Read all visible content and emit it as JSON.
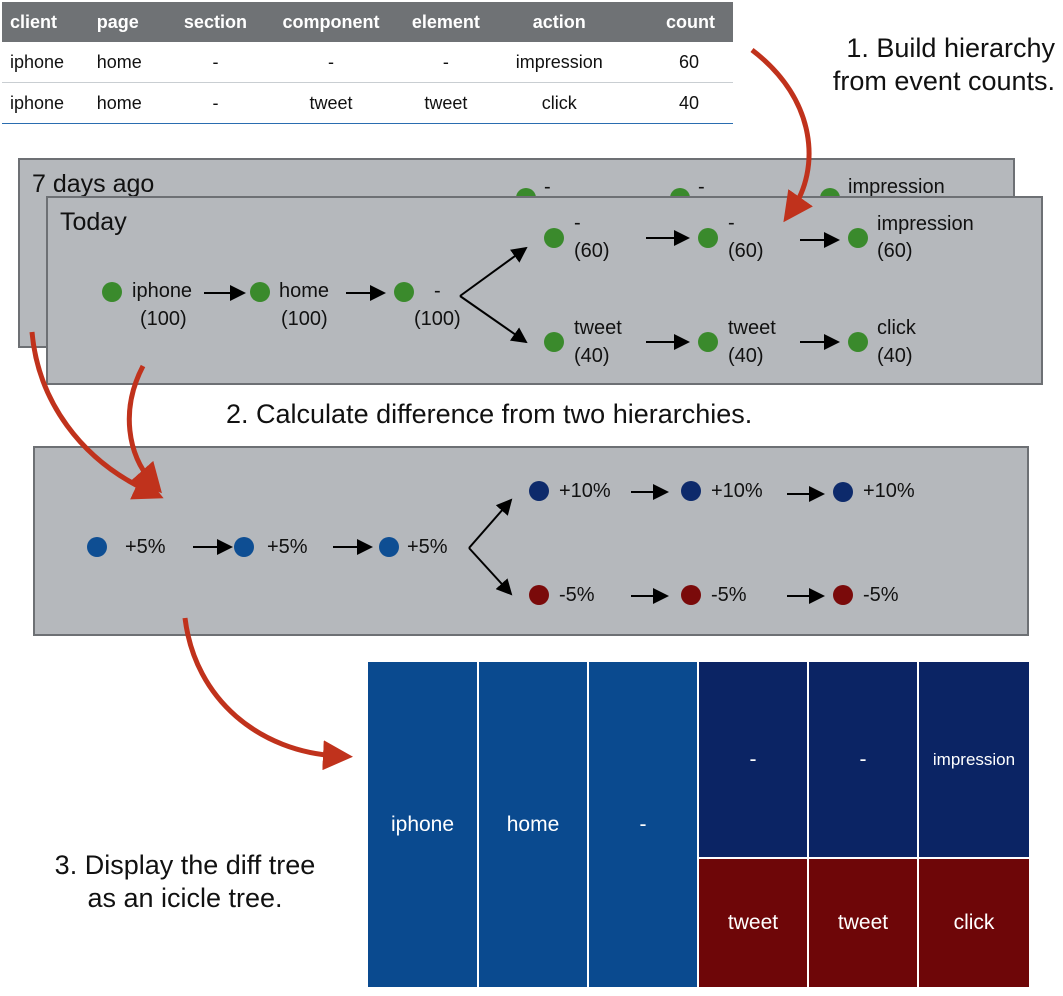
{
  "table": {
    "headers": [
      "client",
      "page",
      "section",
      "component",
      "element",
      "action",
      "count"
    ],
    "rows": [
      [
        "iphone",
        "home",
        "-",
        "-",
        "-",
        "impression",
        "60"
      ],
      [
        "iphone",
        "home",
        "-",
        "tweet",
        "tweet",
        "click",
        "40"
      ]
    ]
  },
  "steps": {
    "step1_line1": "1. Build hierarchy",
    "step1_line2": "from event counts.",
    "step2": "2. Calculate difference from two hierarchies.",
    "step3_line1": "3. Display the diff tree",
    "step3_line2": "as an icicle tree."
  },
  "back_panel": {
    "title": "7 days ago",
    "labels": [
      "-",
      "-",
      "impression"
    ]
  },
  "today_panel": {
    "title": "Today",
    "nodes": {
      "client": {
        "name": "iphone",
        "count": "(100)"
      },
      "page": {
        "name": "home",
        "count": "(100)"
      },
      "section": {
        "name": "-",
        "count": "(100)"
      },
      "top1": {
        "name": "-",
        "count": "(60)"
      },
      "top2": {
        "name": "-",
        "count": "(60)"
      },
      "top3": {
        "name": "impression",
        "count": "(60)"
      },
      "bot1": {
        "name": "tweet",
        "count": "(40)"
      },
      "bot2": {
        "name": "tweet",
        "count": "(40)"
      },
      "bot3": {
        "name": "click",
        "count": "(40)"
      }
    }
  },
  "diff_panel": {
    "n1": "+5%",
    "n2": "+5%",
    "n3": "+5%",
    "top1": "+10%",
    "top2": "+10%",
    "top3": "+10%",
    "bot1": "-5%",
    "bot2": "-5%",
    "bot3": "-5%"
  },
  "icicle": {
    "root": [
      "iphone",
      "home",
      "-"
    ],
    "top": [
      "-",
      "-",
      "impression"
    ],
    "bottom": [
      "tweet",
      "tweet",
      "click"
    ]
  },
  "colors": {
    "green_node": "#3a8a2c",
    "blue_node": "#0e4e93",
    "navy_node": "#0d2a6b",
    "red_node": "#7a0a0a",
    "arrow_red": "#c0321c",
    "panel_gray": "#b5b8bc",
    "table_header": "#6f7275"
  }
}
